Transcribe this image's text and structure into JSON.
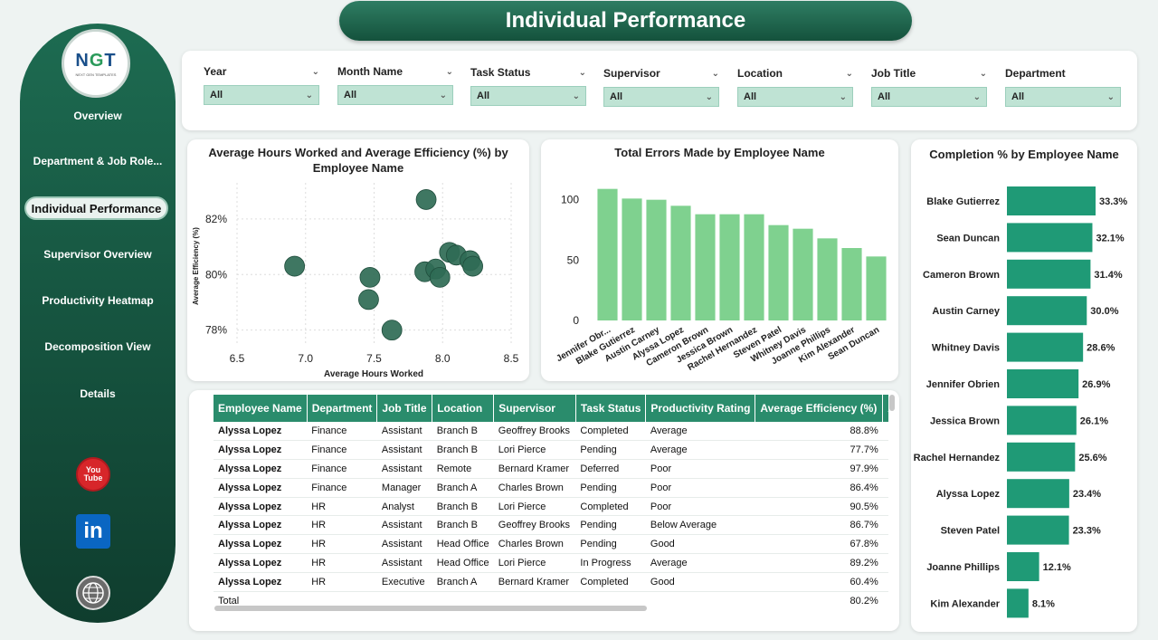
{
  "header": {
    "title": "Individual Performance"
  },
  "logo": {
    "text_n": "N",
    "text_g": "G",
    "text_t": "T",
    "subtitle": "NEXT GEN TEMPLATES"
  },
  "sidebar": {
    "items": [
      {
        "label": "Overview"
      },
      {
        "label": "Department & Job Role..."
      },
      {
        "label": "Individual Performance"
      },
      {
        "label": "Supervisor Overview"
      },
      {
        "label": "Productivity Heatmap"
      },
      {
        "label": "Decomposition View"
      },
      {
        "label": "Details"
      }
    ],
    "youtube_line1": "You",
    "youtube_line2": "Tube",
    "linkedin": "in"
  },
  "filters": [
    {
      "label": "Year",
      "value": "All"
    },
    {
      "label": "Month Name",
      "value": "All"
    },
    {
      "label": "Task Status",
      "value": "All"
    },
    {
      "label": "Supervisor",
      "value": "All"
    },
    {
      "label": "Location",
      "value": "All"
    },
    {
      "label": "Job Title",
      "value": "All"
    },
    {
      "label": "Department",
      "value": "All"
    }
  ],
  "chart_data": [
    {
      "type": "scatter",
      "title": "Average Hours Worked and Average Efficiency (%) by Employee Name",
      "xlabel": "Average Hours Worked",
      "ylabel": "Average Efficiency (%)",
      "xlim": [
        6.5,
        8.5
      ],
      "ylim": [
        77.5,
        83.3
      ],
      "xticks": [
        "6.5",
        "7.0",
        "7.5",
        "8.0",
        "8.5"
      ],
      "yticks": [
        "78%",
        "80%",
        "82%"
      ],
      "x": [
        6.92,
        7.47,
        7.46,
        7.63,
        7.88,
        7.87,
        7.95,
        7.98,
        8.05,
        8.1,
        8.2,
        8.22
      ],
      "y": [
        80.3,
        79.9,
        79.1,
        78.0,
        82.7,
        80.1,
        80.2,
        79.9,
        80.8,
        80.7,
        80.5,
        80.3
      ],
      "color": "#2f6b55"
    },
    {
      "type": "bar",
      "title": "Total Errors Made by Employee Name",
      "categories": [
        "Jennifer Obr...",
        "Blake Gutierrez",
        "Austin Carney",
        "Alyssa Lopez",
        "Cameron Brown",
        "Jessica Brown",
        "Rachel Hernandez",
        "Steven Patel",
        "Whitney Davis",
        "Joanne Phillips",
        "Kim Alexander",
        "Sean Duncan"
      ],
      "values": [
        109,
        101,
        100,
        95,
        88,
        88,
        88,
        79,
        76,
        68,
        60,
        53
      ],
      "yticks": [
        "0",
        "50",
        "100"
      ],
      "ylim": [
        0,
        120
      ],
      "color": "#7fd18f"
    },
    {
      "type": "bar",
      "title": "Completion % by Employee Name",
      "categories": [
        "Blake Gutierrez",
        "Sean Duncan",
        "Cameron Brown",
        "Austin Carney",
        "Whitney Davis",
        "Jennifer Obrien",
        "Jessica Brown",
        "Rachel Hernandez",
        "Alyssa Lopez",
        "Steven Patel",
        "Joanne Phillips",
        "Kim Alexander"
      ],
      "values": [
        33.3,
        32.1,
        31.4,
        30.0,
        28.6,
        26.9,
        26.1,
        25.6,
        23.4,
        23.3,
        12.1,
        8.1
      ],
      "labels": [
        "33.3%",
        "32.1%",
        "31.4%",
        "30.0%",
        "28.6%",
        "26.9%",
        "26.1%",
        "25.6%",
        "23.4%",
        "23.3%",
        "12.1%",
        "8.1%"
      ],
      "color": "#1f9a76"
    }
  ],
  "table": {
    "columns": [
      "Employee Name",
      "Department",
      "Job Title",
      "Location",
      "Supervisor",
      "Task Status",
      "Productivity Rating",
      "Average Efficiency (%)",
      "A"
    ],
    "rows": [
      [
        "Alyssa Lopez",
        "Finance",
        "Assistant",
        "Branch B",
        "Geoffrey Brooks",
        "Completed",
        "Average",
        "88.8%"
      ],
      [
        "Alyssa Lopez",
        "Finance",
        "Assistant",
        "Branch B",
        "Lori Pierce",
        "Pending",
        "Average",
        "77.7%"
      ],
      [
        "Alyssa Lopez",
        "Finance",
        "Assistant",
        "Remote",
        "Bernard Kramer",
        "Deferred",
        "Poor",
        "97.9%"
      ],
      [
        "Alyssa Lopez",
        "Finance",
        "Manager",
        "Branch A",
        "Charles Brown",
        "Pending",
        "Poor",
        "86.4%"
      ],
      [
        "Alyssa Lopez",
        "HR",
        "Analyst",
        "Branch B",
        "Lori Pierce",
        "Completed",
        "Poor",
        "90.5%"
      ],
      [
        "Alyssa Lopez",
        "HR",
        "Assistant",
        "Branch B",
        "Geoffrey Brooks",
        "Pending",
        "Below Average",
        "86.7%"
      ],
      [
        "Alyssa Lopez",
        "HR",
        "Assistant",
        "Head Office",
        "Charles Brown",
        "Pending",
        "Good",
        "67.8%"
      ],
      [
        "Alyssa Lopez",
        "HR",
        "Assistant",
        "Head Office",
        "Lori Pierce",
        "In Progress",
        "Average",
        "89.2%"
      ],
      [
        "Alyssa Lopez",
        "HR",
        "Executive",
        "Branch A",
        "Bernard Kramer",
        "Completed",
        "Good",
        "60.4%"
      ]
    ],
    "total_label": "Total",
    "total_value": "80.2%"
  }
}
